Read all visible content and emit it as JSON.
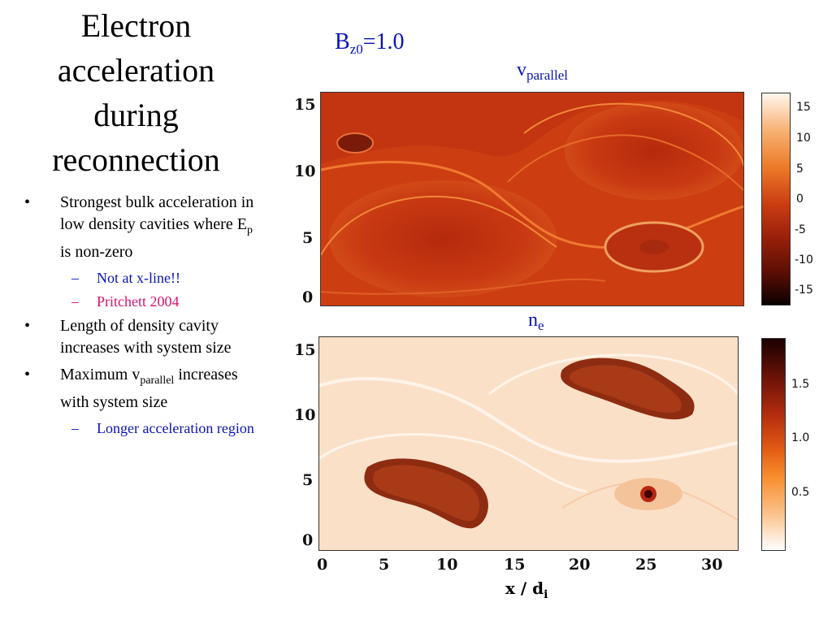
{
  "slide": {
    "title_lines": [
      "Electron",
      "acceleration",
      "during",
      "reconnection"
    ],
    "bullets": [
      {
        "text": "Strongest bulk acceleration in low density cavities where E",
        "sub": "p",
        "tail": " is non-zero"
      },
      {
        "text": "Not at x-line!!"
      },
      {
        "text": "Pritchett 2004"
      },
      {
        "text": "Length of density cavity increases with system size"
      },
      {
        "text": "Maximum v",
        "sub": "parallel",
        "tail": " increases with system size"
      },
      {
        "text": "Longer acceleration region"
      }
    ],
    "bullet_marker": "•",
    "dash_marker": "–",
    "colors": {
      "accent": "#0a14b4",
      "pink": "#d4146e"
    }
  },
  "figure": {
    "bz_label": {
      "main": "B",
      "sub": "z0",
      "tail": "=1.0"
    },
    "top_plot": {
      "label_main": "v",
      "label_sub": "parallel",
      "y_ticks": [
        "15",
        "10",
        "5",
        "0"
      ],
      "colorbar_ticks": [
        "15",
        "10",
        "5",
        "0",
        "-5",
        "-10",
        "-15"
      ]
    },
    "bottom_plot": {
      "label_main": "n",
      "label_sub": "e",
      "y_ticks": [
        "15",
        "10",
        "5",
        "0"
      ],
      "x_ticks": [
        "0",
        "5",
        "10",
        "15",
        "20",
        "25",
        "30"
      ],
      "colorbar_ticks": [
        "1.5",
        "1.0",
        "0.5"
      ],
      "x_label_main": "x / d",
      "x_label_sub": "i"
    }
  }
}
